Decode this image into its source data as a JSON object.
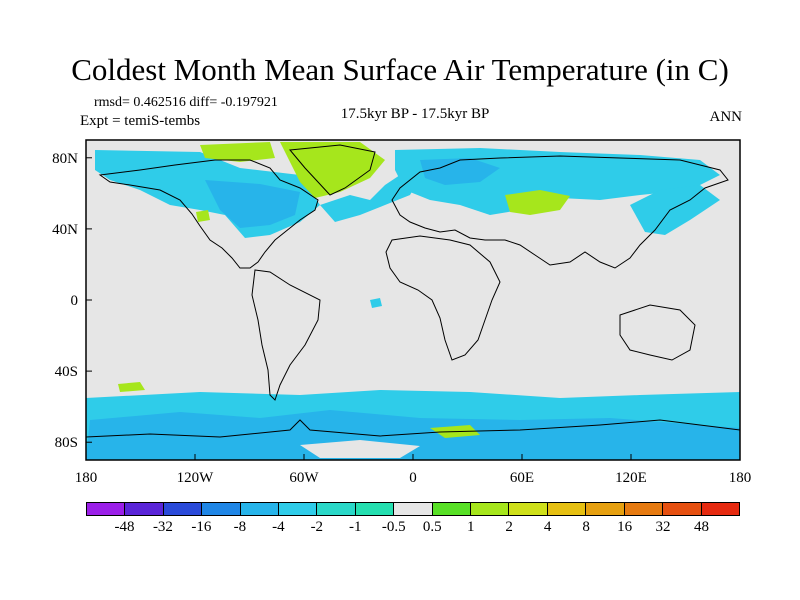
{
  "header": {
    "title": "Coldest Month Mean Surface Air Temperature (in C)",
    "stats": "rmsd= 0.462516 diff= -0.197921",
    "expt": "Expt = temiS-tembs",
    "period": "17.5kyr BP - 17.5kyr BP",
    "season": "ANN"
  },
  "map": {
    "projection": "cylindrical-equidistant",
    "lon_range": [
      -180,
      180
    ],
    "lat_range": [
      -90,
      90
    ],
    "x_tick_labels": [
      "180",
      "120W",
      "60W",
      "0",
      "60E",
      "120E",
      "180"
    ],
    "y_tick_labels": [
      "80N",
      "40N",
      "0",
      "40S",
      "80S"
    ],
    "background_color": "#e6e6e6"
  },
  "colorbar": {
    "colors": [
      "#9b1fe8",
      "#5a25d8",
      "#2a4ad9",
      "#1f86e6",
      "#27b4ea",
      "#2fcce9",
      "#2ad8c8",
      "#25dfb0",
      "#e6e6e6",
      "#58e026",
      "#a6e61c",
      "#cfe01a",
      "#e6c012",
      "#e6a010",
      "#e67a10",
      "#e65010",
      "#e62a10"
    ],
    "labels": [
      "-48",
      "-32",
      "-16",
      "-8",
      "-4",
      "-2",
      "-1",
      "-0.5",
      "0.5",
      "1",
      "2",
      "4",
      "8",
      "16",
      "32",
      "48"
    ]
  }
}
